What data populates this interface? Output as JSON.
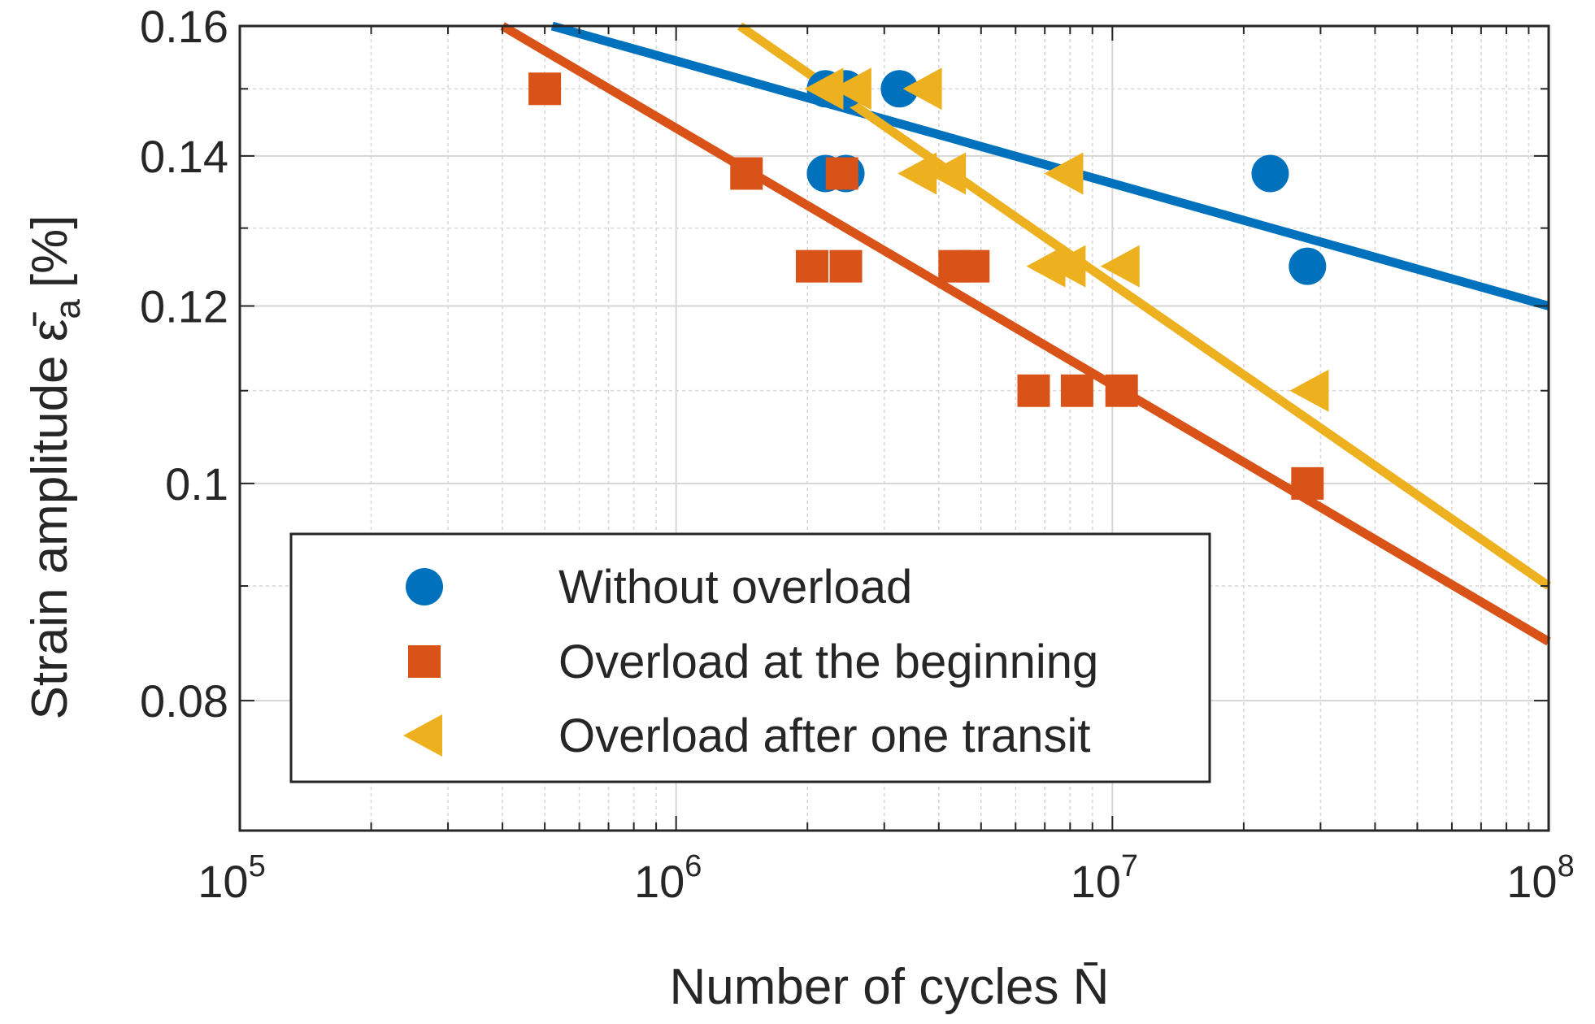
{
  "chart_data": {
    "type": "scatter",
    "title": "",
    "xlabel": "Number of cycles N̄",
    "ylabel": "Strain amplitude ε̄",
    "ylabel_sub": "a",
    "ylabel_unit": "[%]",
    "xscale": "log",
    "yscale": "log",
    "xlim": [
      100000,
      100000000
    ],
    "ylim": [
      0.07,
      0.16
    ],
    "x_ticks": [
      {
        "base": "10",
        "exp": "5",
        "value": 100000
      },
      {
        "base": "10",
        "exp": "6",
        "value": 1000000
      },
      {
        "base": "10",
        "exp": "7",
        "value": 10000000
      },
      {
        "base": "10",
        "exp": "8",
        "value": 100000000
      }
    ],
    "y_ticks": [
      {
        "label": "0.08",
        "value": 0.08
      },
      {
        "label": "0.1",
        "value": 0.1
      },
      {
        "label": "0.12",
        "value": 0.12
      },
      {
        "label": "0.14",
        "value": 0.14
      },
      {
        "label": "0.16",
        "value": 0.16
      }
    ],
    "grid": true,
    "minor_grid": true,
    "legend_position": "bottom-left",
    "series": [
      {
        "name": "Without overload",
        "marker": "circle",
        "color": "#0072BD",
        "points": [
          {
            "x": 2200000,
            "y": 0.15
          },
          {
            "x": 2450000,
            "y": 0.15
          },
          {
            "x": 3250000,
            "y": 0.15
          },
          {
            "x": 2200000,
            "y": 0.1375
          },
          {
            "x": 2450000,
            "y": 0.1375
          },
          {
            "x": 23000000,
            "y": 0.1375
          },
          {
            "x": 28000000,
            "y": 0.125
          }
        ],
        "fit": [
          {
            "x": 520000,
            "y": 0.16
          },
          {
            "x": 100000000,
            "y": 0.12
          }
        ]
      },
      {
        "name": "Overload at the beginning",
        "marker": "square",
        "color": "#D95319",
        "points": [
          {
            "x": 500000,
            "y": 0.15
          },
          {
            "x": 1450000,
            "y": 0.1375
          },
          {
            "x": 2400000,
            "y": 0.1375
          },
          {
            "x": 2050000,
            "y": 0.125
          },
          {
            "x": 2450000,
            "y": 0.125
          },
          {
            "x": 4350000,
            "y": 0.125
          },
          {
            "x": 4800000,
            "y": 0.125
          },
          {
            "x": 6600000,
            "y": 0.11
          },
          {
            "x": 8300000,
            "y": 0.11
          },
          {
            "x": 10500000,
            "y": 0.11
          },
          {
            "x": 28000000,
            "y": 0.1
          }
        ],
        "fit": [
          {
            "x": 400000,
            "y": 0.16
          },
          {
            "x": 100000000,
            "y": 0.085
          }
        ]
      },
      {
        "name": "Overload after one transit",
        "marker": "triangle-left",
        "color": "#EDB120",
        "points": [
          {
            "x": 2200000,
            "y": 0.15
          },
          {
            "x": 2550000,
            "y": 0.15
          },
          {
            "x": 3700000,
            "y": 0.15
          },
          {
            "x": 3600000,
            "y": 0.1375
          },
          {
            "x": 4200000,
            "y": 0.1375
          },
          {
            "x": 7800000,
            "y": 0.1375
          },
          {
            "x": 7100000,
            "y": 0.125
          },
          {
            "x": 7900000,
            "y": 0.125
          },
          {
            "x": 10500000,
            "y": 0.125
          },
          {
            "x": 28500000,
            "y": 0.11
          }
        ],
        "fit": [
          {
            "x": 1400000,
            "y": 0.16
          },
          {
            "x": 100000000,
            "y": 0.09
          }
        ]
      }
    ]
  }
}
